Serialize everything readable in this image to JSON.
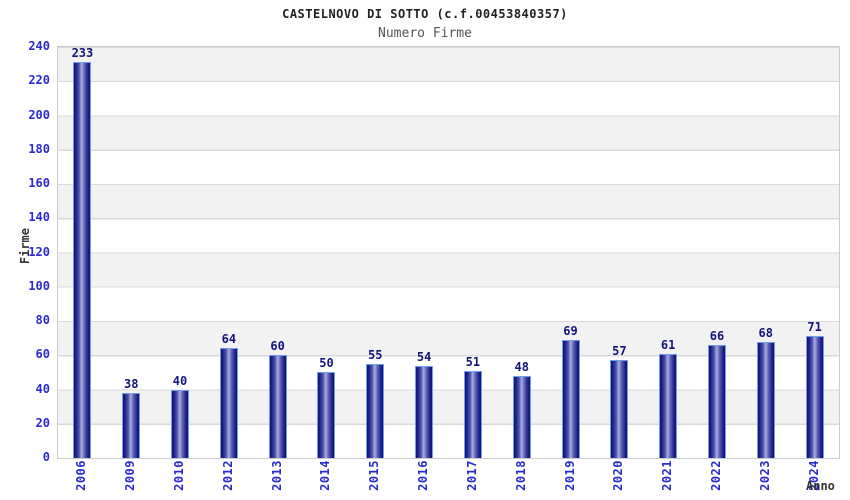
{
  "header": {
    "title": "CASTELNOVO DI SOTTO (c.f.00453840357)",
    "subtitle": "Numero Firme"
  },
  "axes": {
    "y_title": "Firme",
    "x_title": "Anno"
  },
  "chart_data": {
    "type": "bar",
    "title": "CASTELNOVO DI SOTTO (c.f.00453840357)",
    "subtitle": "Numero Firme",
    "xlabel": "Anno",
    "ylabel": "Firme",
    "categories": [
      "2006",
      "2009",
      "2010",
      "2012",
      "2013",
      "2014",
      "2015",
      "2016",
      "2017",
      "2018",
      "2019",
      "2020",
      "2021",
      "2022",
      "2023",
      "2024"
    ],
    "values": [
      233,
      38,
      40,
      64,
      60,
      50,
      55,
      54,
      51,
      48,
      69,
      57,
      61,
      66,
      68,
      71
    ],
    "ylim": [
      0,
      240
    ],
    "ytick_step": 20,
    "grid": true,
    "legend_position": "none",
    "band_fill": true
  },
  "colors": {
    "tick_label": "#2a2ad0",
    "value_label": "#14147d",
    "bar_dark": "#14146b",
    "bar_light": "#a9afde",
    "bar_border": "#6d9ff0",
    "band_gray": "#f2f2f2",
    "grid_line": "#d9d9d9",
    "plot_border": "#cccccc",
    "title_color": "#222222",
    "subtitle_color": "#555555",
    "axis_title_color": "#333333"
  }
}
